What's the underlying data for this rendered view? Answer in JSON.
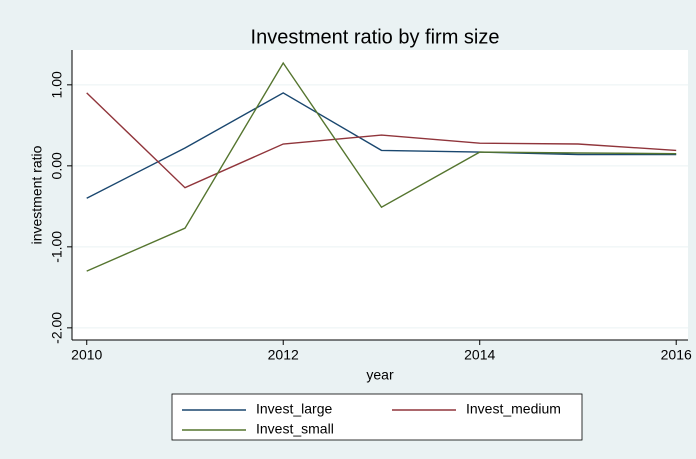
{
  "chart_data": {
    "type": "line",
    "title": "Investment ratio by firm size",
    "xlabel": "year",
    "ylabel": "investment ratio",
    "x": [
      2010,
      2011,
      2012,
      2013,
      2014,
      2015,
      2016
    ],
    "series": [
      {
        "name": "Invest_large",
        "color": "#1a476f",
        "values": [
          -0.4,
          0.22,
          0.9,
          0.19,
          0.17,
          0.14,
          0.14
        ]
      },
      {
        "name": "Invest_medium",
        "color": "#90353b",
        "values": [
          0.9,
          -0.27,
          0.27,
          0.38,
          0.28,
          0.27,
          0.19
        ]
      },
      {
        "name": "Invest_small",
        "color": "#55752f",
        "values": [
          -1.3,
          -0.77,
          1.27,
          -0.51,
          0.17,
          0.16,
          0.15
        ]
      }
    ],
    "xlim": [
      2009.85,
      2016.12
    ],
    "xticks": [
      2010,
      2012,
      2014,
      2016
    ],
    "ylim": [
      -2.15,
      1.43
    ],
    "yticks": [
      {
        "value": -2,
        "label": "-2.00"
      },
      {
        "value": -1,
        "label": "-1.00"
      },
      {
        "value": 0,
        "label": "0.00"
      },
      {
        "value": 1,
        "label": "1.00"
      }
    ],
    "grid": true,
    "legend": "bottom"
  }
}
